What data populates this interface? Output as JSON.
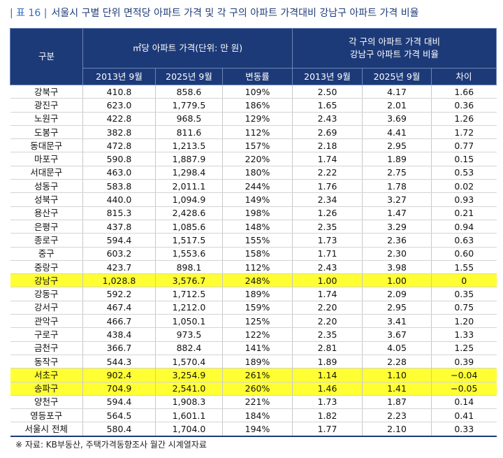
{
  "header": {
    "label": "| 표 16 |",
    "title": "서울시 구별 단위 면적당 아파트 가격 및 각 구의 아파트 가격대비 강남구 아파트 가격 비율"
  },
  "table": {
    "group_headers": [
      "구분",
      "㎡당 아파트 가격(단위: 만 원)",
      "각 구의 아파트 가격 대비\n강남구 아파트 가격 비율"
    ],
    "columns": [
      "2013년 9월",
      "2025년 9월",
      "변동률",
      "2013년 9월",
      "2025년 9월",
      "차이"
    ],
    "rows": [
      [
        "강북구",
        "410.8",
        "858.6",
        "109%",
        "2.50",
        "4.17",
        "1.66"
      ],
      [
        "광진구",
        "623.0",
        "1,779.5",
        "186%",
        "1.65",
        "2.01",
        "0.36"
      ],
      [
        "노원구",
        "422.8",
        "968.5",
        "129%",
        "2.43",
        "3.69",
        "1.26"
      ],
      [
        "도봉구",
        "382.8",
        "811.6",
        "112%",
        "2.69",
        "4.41",
        "1.72"
      ],
      [
        "동대문구",
        "472.8",
        "1,213.5",
        "157%",
        "2.18",
        "2.95",
        "0.77"
      ],
      [
        "마포구",
        "590.8",
        "1,887.9",
        "220%",
        "1.74",
        "1.89",
        "0.15"
      ],
      [
        "서대문구",
        "463.0",
        "1,298.4",
        "180%",
        "2.22",
        "2.75",
        "0.53"
      ],
      [
        "성동구",
        "583.8",
        "2,011.1",
        "244%",
        "1.76",
        "1.78",
        "0.02"
      ],
      [
        "성북구",
        "440.0",
        "1,094.9",
        "149%",
        "2.34",
        "3.27",
        "0.93"
      ],
      [
        "용산구",
        "815.3",
        "2,428.6",
        "198%",
        "1.26",
        "1.47",
        "0.21"
      ],
      [
        "은평구",
        "437.8",
        "1,085.6",
        "148%",
        "2.35",
        "3.29",
        "0.94"
      ],
      [
        "종로구",
        "594.4",
        "1,517.5",
        "155%",
        "1.73",
        "2.36",
        "0.63"
      ],
      [
        "중구",
        "603.2",
        "1,553.6",
        "158%",
        "1.71",
        "2.30",
        "0.60"
      ],
      [
        "중랑구",
        "423.7",
        "898.1",
        "112%",
        "2.43",
        "3.98",
        "1.55"
      ],
      [
        "강남구",
        "1,028.8",
        "3,576.7",
        "248%",
        "1.00",
        "1.00",
        "0"
      ],
      [
        "강동구",
        "592.2",
        "1,712.5",
        "189%",
        "1.74",
        "2.09",
        "0.35"
      ],
      [
        "강서구",
        "467.4",
        "1,212.0",
        "159%",
        "2.20",
        "2.95",
        "0.75"
      ],
      [
        "관악구",
        "466.7",
        "1,050.1",
        "125%",
        "2.20",
        "3.41",
        "1.20"
      ],
      [
        "구로구",
        "438.4",
        "973.5",
        "122%",
        "2.35",
        "3.67",
        "1.33"
      ],
      [
        "금천구",
        "366.7",
        "882.4",
        "141%",
        "2.81",
        "4.05",
        "1.25"
      ],
      [
        "동작구",
        "544.3",
        "1,570.4",
        "189%",
        "1.89",
        "2.28",
        "0.39"
      ],
      [
        "서초구",
        "902.4",
        "3,254.9",
        "261%",
        "1.14",
        "1.10",
        "−0.04"
      ],
      [
        "송파구",
        "704.9",
        "2,541.0",
        "260%",
        "1.46",
        "1.41",
        "−0.05"
      ],
      [
        "양천구",
        "594.4",
        "1,908.3",
        "221%",
        "1.73",
        "1.87",
        "0.14"
      ],
      [
        "영등포구",
        "564.5",
        "1,601.1",
        "184%",
        "1.82",
        "2.23",
        "0.41"
      ],
      [
        "서울시 전체",
        "580.4",
        "1,704.0",
        "194%",
        "1.77",
        "2.10",
        "0.33"
      ]
    ],
    "highlight_rows": [
      14,
      21,
      22
    ],
    "highlight_color": "#ffff33"
  },
  "footnote": "※ 자료: KB부동산, 주택가격동향조사 월간 시계열자료"
}
